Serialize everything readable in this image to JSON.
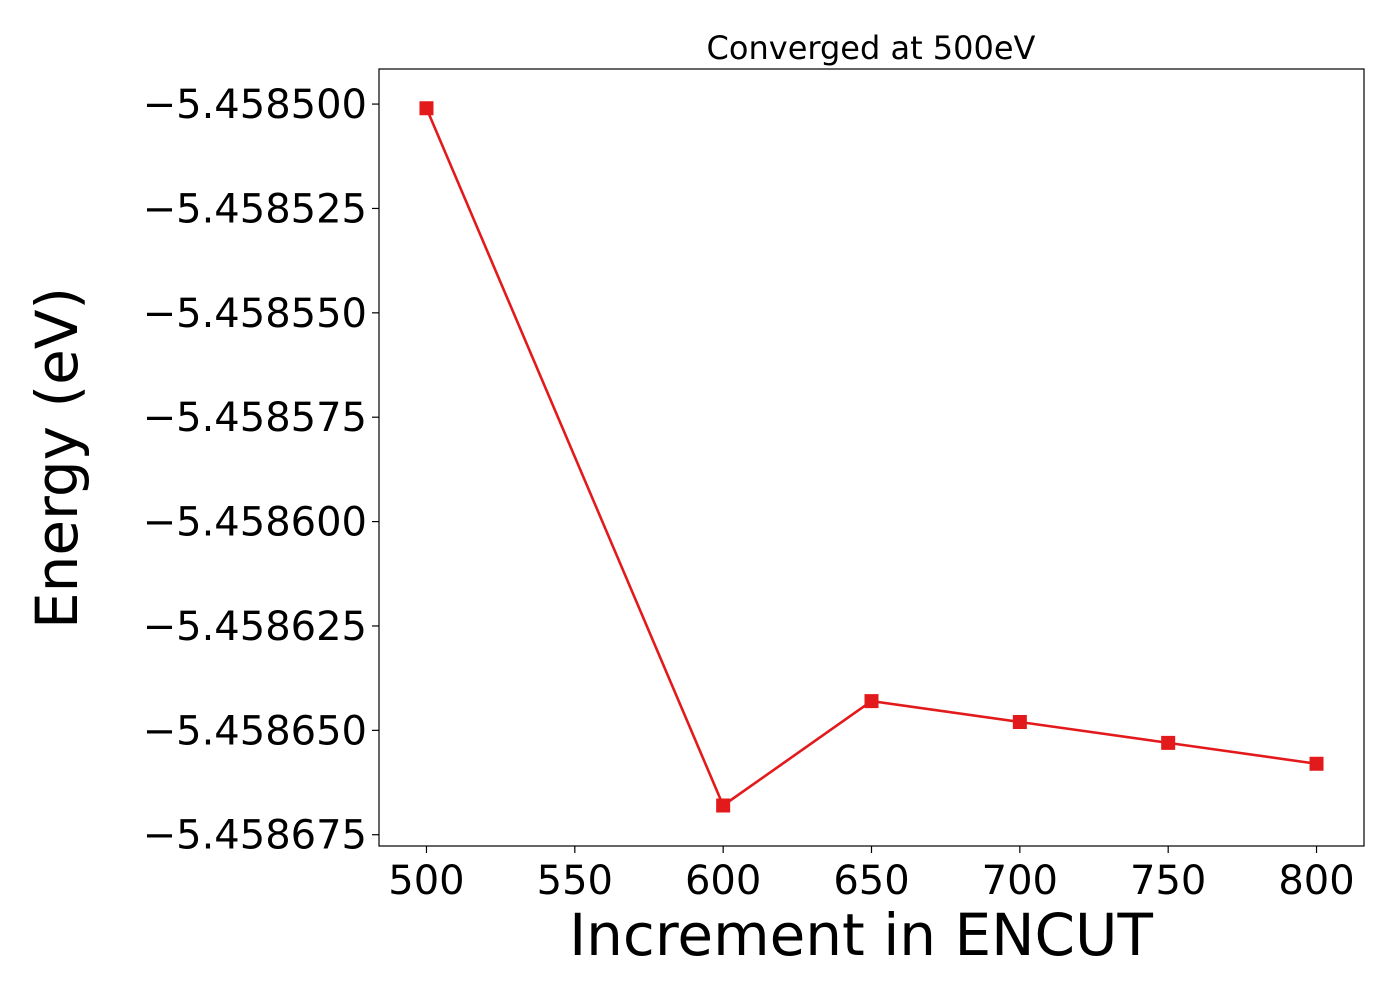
{
  "chart_data": {
    "type": "line",
    "title": "Converged at 500eV",
    "xlabel": "Increment in ENCUT",
    "ylabel": "Energy (eV)",
    "xlim": [
      484,
      816
    ],
    "ylim": [
      -5.4586777,
      -5.4584916
    ],
    "x_ticks": [
      500,
      550,
      600,
      650,
      700,
      750,
      800
    ],
    "x_tick_labels": [
      "500",
      "550",
      "600",
      "650",
      "700",
      "750",
      "800"
    ],
    "y_ticks": [
      -5.4585,
      -5.458525,
      -5.45855,
      -5.458575,
      -5.4586,
      -5.458625,
      -5.45865,
      -5.458675
    ],
    "y_tick_labels": [
      "−5.458500",
      "−5.458525",
      "−5.458550",
      "−5.458575",
      "−5.458600",
      "−5.458625",
      "−5.458650",
      "−5.458675"
    ],
    "grid": false,
    "series": [
      {
        "x": [
          500,
          600,
          650,
          700,
          750,
          800
        ],
        "y": [
          -5.458501,
          -5.458668,
          -5.458643,
          -5.458648,
          -5.458653,
          -5.458658
        ],
        "color": "#e31a1c",
        "marker": "square"
      }
    ]
  }
}
